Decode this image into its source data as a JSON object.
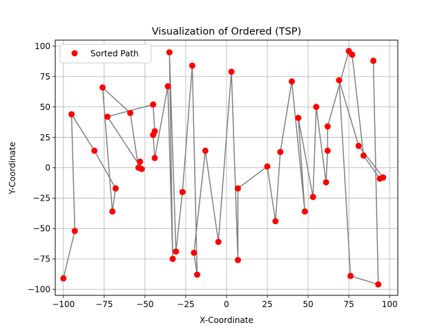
{
  "chart_data": {
    "type": "scatter",
    "title": "Visualization of Ordered (TSP)",
    "xlabel": "X-Coordinate",
    "ylabel": "Y-Coordinate",
    "xlim": [
      -105,
      105
    ],
    "ylim": [
      -105,
      105
    ],
    "xticks": [
      -100,
      -75,
      -50,
      -25,
      0,
      25,
      50,
      75,
      100
    ],
    "yticks": [
      -100,
      -75,
      -50,
      -25,
      0,
      25,
      50,
      75,
      100
    ],
    "grid": true,
    "legend": {
      "position": "top-left",
      "entries": [
        "Sorted Path"
      ]
    },
    "series": [
      {
        "name": "Sorted Path",
        "point_color": "#ff0000",
        "line_color": "#808080",
        "points": [
          [
            -100,
            -91
          ],
          [
            -93,
            -52
          ],
          [
            -95,
            44
          ],
          [
            -81,
            14
          ],
          [
            -68,
            -17
          ],
          [
            -70,
            -36
          ],
          [
            -76,
            66
          ],
          [
            -59,
            45
          ],
          [
            -54,
            0
          ],
          [
            -53,
            5
          ],
          [
            -52,
            -1
          ],
          [
            -73,
            42
          ],
          [
            -45,
            52
          ],
          [
            -44,
            30
          ],
          [
            -45,
            27
          ],
          [
            -44,
            8
          ],
          [
            -36,
            67
          ],
          [
            -33,
            -75
          ],
          [
            -35,
            95
          ],
          [
            -31,
            -69
          ],
          [
            -27,
            -20
          ],
          [
            -21,
            84
          ],
          [
            -18,
            -88
          ],
          [
            -20,
            -70
          ],
          [
            -13,
            14
          ],
          [
            -5,
            -61
          ],
          [
            3,
            79
          ],
          [
            7,
            -76
          ],
          [
            7,
            -17
          ],
          [
            25,
            1
          ],
          [
            30,
            -44
          ],
          [
            33,
            13
          ],
          [
            40,
            71
          ],
          [
            48,
            -36
          ],
          [
            44,
            41
          ],
          [
            53,
            -24
          ],
          [
            55,
            50
          ],
          [
            61,
            -12
          ],
          [
            62,
            14
          ],
          [
            62,
            34
          ],
          [
            75,
            96
          ],
          [
            77,
            93
          ],
          [
            84,
            10
          ],
          [
            94,
            -9
          ],
          [
            96,
            -8
          ],
          [
            81,
            18
          ],
          [
            69,
            72
          ],
          [
            76,
            -89
          ],
          [
            93,
            -96
          ],
          [
            90,
            88
          ]
        ]
      }
    ]
  }
}
